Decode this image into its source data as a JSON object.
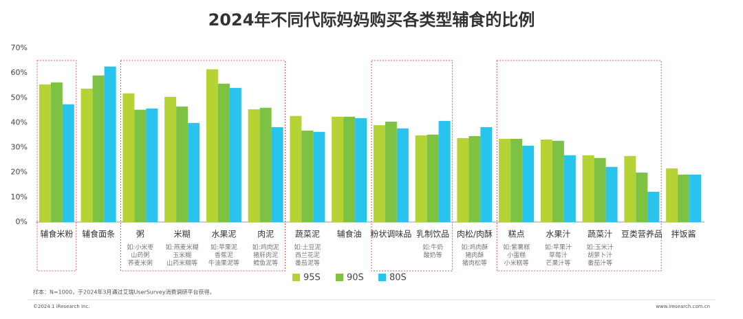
{
  "chart_data": {
    "type": "bar",
    "title": "2024年不同代际妈妈购买各类型辅食的比例",
    "categories": [
      "辅食米粉",
      "辅食面条",
      "粥",
      "米糊",
      "水果泥",
      "肉泥",
      "蔬菜泥",
      "辅食油",
      "粉状调味品",
      "乳制饮品",
      "肉松/肉酥",
      "糕点",
      "水果汁",
      "蔬菜汁",
      "豆类营养品",
      "拌饭酱"
    ],
    "examples": [
      [],
      [],
      [
        "如:小米枣",
        "山药粥",
        "荞麦米粥"
      ],
      [
        "如:燕麦米糊",
        "玉米糊",
        "山药米糊等"
      ],
      [
        "如:苹果泥",
        "香蕉泥",
        "牛油果泥等"
      ],
      [
        "如:鸡肉泥",
        "猪肝肉泥",
        "鳕鱼泥等"
      ],
      [
        "如:土豆泥",
        "西兰花泥",
        "番茄泥等"
      ],
      [],
      [],
      [
        "如:牛奶",
        "酸奶等"
      ],
      [
        "如:鸡肉酥",
        "猪肉酥",
        "猪肉松等"
      ],
      [
        "如:紫薯糕",
        "小蛋糕",
        "小米糕等"
      ],
      [
        "如:苹果汁",
        "草莓汁",
        "芒果汁等"
      ],
      [
        "如:玉米汁",
        "胡萝卜汁",
        "番茄汁等"
      ],
      [],
      []
    ],
    "series": [
      {
        "name": "95S",
        "color": "#b5d334",
        "values": [
          55.4,
          53.7,
          51.8,
          50.4,
          61.5,
          45.4,
          42.7,
          42.4,
          39.0,
          34.9,
          33.8,
          33.5,
          33.2,
          26.9,
          26.6,
          21.6
        ]
      },
      {
        "name": "90S",
        "color": "#7dc242",
        "values": [
          56.2,
          59.0,
          45.2,
          46.5,
          55.7,
          46.0,
          36.8,
          42.4,
          40.4,
          35.2,
          34.6,
          33.5,
          32.7,
          25.8,
          19.9,
          19.1
        ]
      },
      {
        "name": "80S",
        "color": "#29c4ee",
        "values": [
          47.4,
          62.6,
          45.7,
          39.9,
          54.0,
          38.2,
          36.3,
          41.8,
          37.7,
          40.7,
          38.2,
          30.7,
          26.9,
          22.2,
          12.2,
          19.1
        ]
      }
    ],
    "ylim": [
      0,
      70
    ],
    "yticks": [
      {
        "value": 0,
        "label": "0%"
      },
      {
        "value": 10,
        "label": "10%"
      },
      {
        "value": 20,
        "label": "20%"
      },
      {
        "value": 30,
        "label": "30%"
      },
      {
        "value": 40,
        "label": "40%"
      },
      {
        "value": 50,
        "label": "50%"
      },
      {
        "value": 60,
        "label": "60%"
      },
      {
        "value": 70,
        "label": "70%"
      }
    ],
    "legend": "bottom",
    "note": "样本：N=1000，于2024年3月通过艾瑞UserSurvey消费调研平台获得。",
    "copyright": "©2024.1 iResearch Inc.",
    "website": "www.iresearch.com.cn"
  }
}
